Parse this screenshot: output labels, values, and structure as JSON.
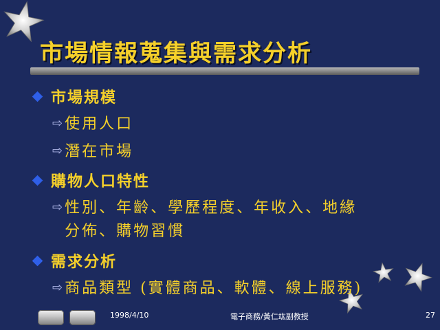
{
  "slide": {
    "title": "市場情報蒐集與需求分析",
    "bullets": [
      {
        "label": "市場規模",
        "subitems": [
          "使用人口",
          "潛在市場"
        ]
      },
      {
        "label": "購物人口特性",
        "subitems": [
          "性別、年齡、學歷程度、年收入、地緣\n分佈、購物習慣"
        ]
      },
      {
        "label": "需求分析",
        "subitems": [
          "商品類型 (實體商品、軟體、線上服務)"
        ]
      }
    ]
  },
  "footer": {
    "date": "1998/4/10",
    "author": "電子商務/黃仁竑副教授",
    "page_number": "27"
  },
  "colors": {
    "background": "#1c2a5e",
    "title_text": "#f5d02a",
    "body_text": "#f5d02a",
    "bullet": "#2f5fe8",
    "arrow": "#aeb6e8"
  },
  "icons": {
    "bullet_level1": "blue-diamond-bullet",
    "bullet_level2": "outline-right-arrow",
    "decoration": "silver-star"
  }
}
